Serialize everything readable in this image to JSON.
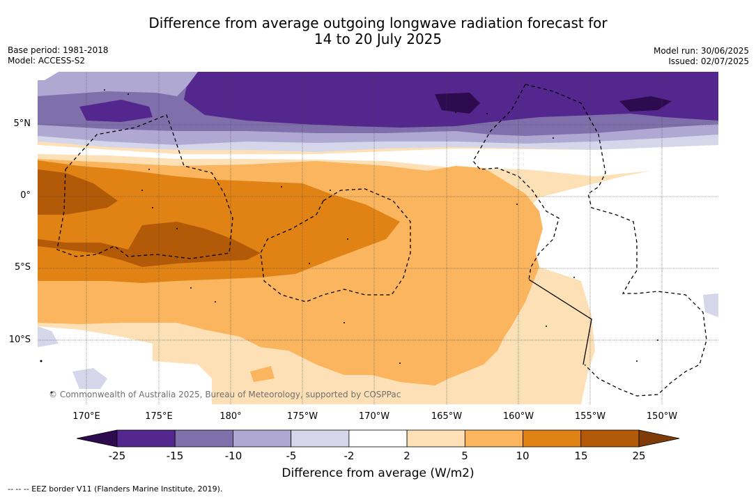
{
  "header": {
    "title_line1": "Difference from average outgoing longwave radiation forecast for",
    "title_line2": "14 to 20 July 2025",
    "base_period": "Base period: 1981-2018",
    "model": "Model: ACCESS-S2",
    "model_run": "Model run: 30/06/2025",
    "issued": "Issued: 02/07/2025"
  },
  "map": {
    "lat_labels": [
      "5°N",
      "0°",
      "5°S",
      "10°S"
    ],
    "lon_labels": [
      "170°E",
      "175°E",
      "180°",
      "175°W",
      "170°W",
      "165°W",
      "160°W",
      "155°W",
      "150°W"
    ],
    "copyright": "© Commonwealth of Australia 2025, Bureau of Meteorology, supported by COSPPac"
  },
  "colorbar": {
    "ticks": [
      "-25",
      "-15",
      "-10",
      "-5",
      "-2",
      "2",
      "5",
      "10",
      "15",
      "25"
    ],
    "label": "Difference from average (W/m2)",
    "colors": [
      "#2e0a4e",
      "#54278f",
      "#7f6fab",
      "#aea8d3",
      "#d6d6ea",
      "#ffffff",
      "#fde0b5",
      "#fbb55e",
      "#e08214",
      "#b25a08",
      "#7f3b08"
    ]
  },
  "legend": {
    "eez": "-- -- -- EEZ border V11 (Flanders Marine Institute, 2019)."
  }
}
